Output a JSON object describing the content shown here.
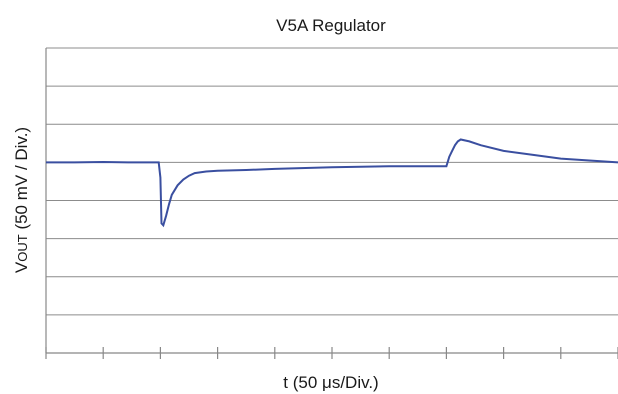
{
  "chart_data": {
    "type": "line",
    "title": "V5A Regulator",
    "xlabel": "t (50 μs/Div.)",
    "ylabel_main": "V",
    "ylabel_sub": "OUT",
    "ylabel_rest": " (50 mV / Div.)",
    "xlim": [
      0,
      10
    ],
    "ylim": [
      0,
      8
    ],
    "x_major_divisions": 10,
    "y_major_divisions": 8,
    "grid": true,
    "series": [
      {
        "color": "#3a4fa0",
        "x": [
          0,
          0.5,
          1.0,
          1.5,
          1.97,
          2.0,
          2.02,
          2.05,
          2.1,
          2.15,
          2.2,
          2.3,
          2.4,
          2.5,
          2.6,
          2.8,
          3.0,
          3.5,
          4.0,
          5.0,
          6.0,
          7.0,
          7.0,
          7.05,
          7.1,
          7.15,
          7.2,
          7.25,
          7.4,
          7.6,
          8.0,
          8.5,
          9.0,
          9.5,
          10.0
        ],
        "y": [
          5.0,
          5.0,
          5.01,
          5.0,
          5.0,
          4.6,
          3.4,
          3.35,
          3.6,
          3.9,
          4.15,
          4.4,
          4.55,
          4.65,
          4.72,
          4.76,
          4.78,
          4.8,
          4.83,
          4.87,
          4.9,
          4.9,
          4.9,
          5.15,
          5.3,
          5.45,
          5.55,
          5.6,
          5.55,
          5.45,
          5.3,
          5.2,
          5.1,
          5.05,
          5.0
        ]
      }
    ]
  }
}
